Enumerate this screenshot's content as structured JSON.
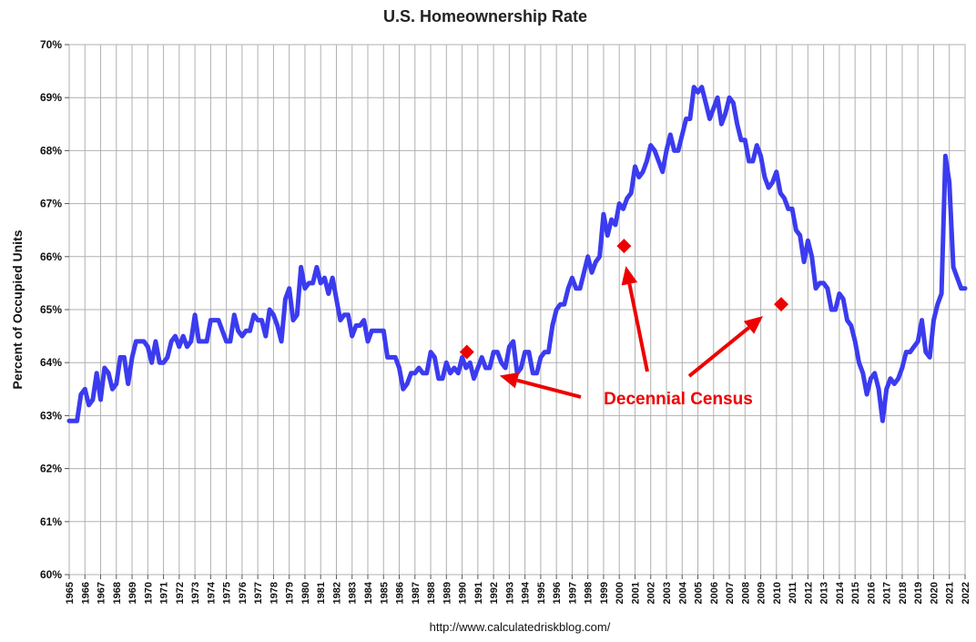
{
  "chart_data": {
    "type": "line",
    "title": "U.S. Homeownership Rate",
    "ylabel": "Percent of Occupied Units",
    "xlabel": "",
    "source": "http://www.calculatedriskblog.com/",
    "ylim": [
      60,
      70
    ],
    "xlim": [
      1965,
      2022
    ],
    "yticks": [
      "60%",
      "61%",
      "62%",
      "63%",
      "64%",
      "65%",
      "66%",
      "67%",
      "68%",
      "69%",
      "70%"
    ],
    "xticks": [
      "1965",
      "1966",
      "1967",
      "1968",
      "1969",
      "1970",
      "1971",
      "1972",
      "1973",
      "1974",
      "1975",
      "1976",
      "1977",
      "1978",
      "1979",
      "1980",
      "1981",
      "1982",
      "1983",
      "1984",
      "1985",
      "1986",
      "1987",
      "1988",
      "1989",
      "1990",
      "1991",
      "1992",
      "1993",
      "1994",
      "1995",
      "1996",
      "1997",
      "1998",
      "1999",
      "2000",
      "2001",
      "2002",
      "2003",
      "2004",
      "2005",
      "2006",
      "2007",
      "2008",
      "2009",
      "2010",
      "2011",
      "2012",
      "2013",
      "2014",
      "2015",
      "2016",
      "2017",
      "2018",
      "2019",
      "2020",
      "2021",
      "2022"
    ],
    "grid": true,
    "colors": {
      "series": "#3b3bf0",
      "census": "#ee0000",
      "grid": "#b0b0b0"
    },
    "series": [
      {
        "values": [
          [
            1965.0,
            62.9
          ],
          [
            1965.25,
            62.9
          ],
          [
            1965.5,
            62.9
          ],
          [
            1965.75,
            63.4
          ],
          [
            1966.0,
            63.5
          ],
          [
            1966.25,
            63.2
          ],
          [
            1966.5,
            63.3
          ],
          [
            1966.75,
            63.8
          ],
          [
            1967.0,
            63.3
          ],
          [
            1967.25,
            63.9
          ],
          [
            1967.5,
            63.8
          ],
          [
            1967.75,
            63.5
          ],
          [
            1968.0,
            63.6
          ],
          [
            1968.25,
            64.1
          ],
          [
            1968.5,
            64.1
          ],
          [
            1968.75,
            63.6
          ],
          [
            1969.0,
            64.1
          ],
          [
            1969.25,
            64.4
          ],
          [
            1969.5,
            64.4
          ],
          [
            1969.75,
            64.4
          ],
          [
            1970.0,
            64.3
          ],
          [
            1970.25,
            64.0
          ],
          [
            1970.5,
            64.4
          ],
          [
            1970.75,
            64.0
          ],
          [
            1971.0,
            64.0
          ],
          [
            1971.25,
            64.1
          ],
          [
            1971.5,
            64.4
          ],
          [
            1971.75,
            64.5
          ],
          [
            1972.0,
            64.3
          ],
          [
            1972.25,
            64.5
          ],
          [
            1972.5,
            64.3
          ],
          [
            1972.75,
            64.4
          ],
          [
            1973.0,
            64.9
          ],
          [
            1973.25,
            64.4
          ],
          [
            1973.5,
            64.4
          ],
          [
            1973.75,
            64.4
          ],
          [
            1974.0,
            64.8
          ],
          [
            1974.25,
            64.8
          ],
          [
            1974.5,
            64.8
          ],
          [
            1974.75,
            64.6
          ],
          [
            1975.0,
            64.4
          ],
          [
            1975.25,
            64.4
          ],
          [
            1975.5,
            64.9
          ],
          [
            1975.75,
            64.6
          ],
          [
            1976.0,
            64.5
          ],
          [
            1976.25,
            64.6
          ],
          [
            1976.5,
            64.6
          ],
          [
            1976.75,
            64.9
          ],
          [
            1977.0,
            64.8
          ],
          [
            1977.25,
            64.8
          ],
          [
            1977.5,
            64.5
          ],
          [
            1977.75,
            65.0
          ],
          [
            1978.0,
            64.9
          ],
          [
            1978.25,
            64.7
          ],
          [
            1978.5,
            64.4
          ],
          [
            1978.75,
            65.2
          ],
          [
            1979.0,
            65.4
          ],
          [
            1979.25,
            64.8
          ],
          [
            1979.5,
            64.9
          ],
          [
            1979.75,
            65.8
          ],
          [
            1980.0,
            65.4
          ],
          [
            1980.25,
            65.5
          ],
          [
            1980.5,
            65.5
          ],
          [
            1980.75,
            65.8
          ],
          [
            1981.0,
            65.5
          ],
          [
            1981.25,
            65.6
          ],
          [
            1981.5,
            65.3
          ],
          [
            1981.75,
            65.6
          ],
          [
            1982.0,
            65.2
          ],
          [
            1982.25,
            64.8
          ],
          [
            1982.5,
            64.9
          ],
          [
            1982.75,
            64.9
          ],
          [
            1983.0,
            64.5
          ],
          [
            1983.25,
            64.7
          ],
          [
            1983.5,
            64.7
          ],
          [
            1983.75,
            64.8
          ],
          [
            1984.0,
            64.4
          ],
          [
            1984.25,
            64.6
          ],
          [
            1984.5,
            64.6
          ],
          [
            1984.75,
            64.6
          ],
          [
            1985.0,
            64.6
          ],
          [
            1985.25,
            64.1
          ],
          [
            1985.5,
            64.1
          ],
          [
            1985.75,
            64.1
          ],
          [
            1986.0,
            63.9
          ],
          [
            1986.25,
            63.5
          ],
          [
            1986.5,
            63.6
          ],
          [
            1986.75,
            63.8
          ],
          [
            1987.0,
            63.8
          ],
          [
            1987.25,
            63.9
          ],
          [
            1987.5,
            63.8
          ],
          [
            1987.75,
            63.8
          ],
          [
            1988.0,
            64.2
          ],
          [
            1988.25,
            64.1
          ],
          [
            1988.5,
            63.7
          ],
          [
            1988.75,
            63.7
          ],
          [
            1989.0,
            64.0
          ],
          [
            1989.25,
            63.8
          ],
          [
            1989.5,
            63.9
          ],
          [
            1989.75,
            63.8
          ],
          [
            1990.0,
            64.1
          ],
          [
            1990.25,
            63.9
          ],
          [
            1990.5,
            64.0
          ],
          [
            1990.75,
            63.7
          ],
          [
            1991.0,
            63.9
          ],
          [
            1991.25,
            64.1
          ],
          [
            1991.5,
            63.9
          ],
          [
            1991.75,
            63.9
          ],
          [
            1992.0,
            64.2
          ],
          [
            1992.25,
            64.2
          ],
          [
            1992.5,
            64.0
          ],
          [
            1992.75,
            63.9
          ],
          [
            1993.0,
            64.3
          ],
          [
            1993.25,
            64.4
          ],
          [
            1993.5,
            63.8
          ],
          [
            1993.75,
            63.9
          ],
          [
            1994.0,
            64.2
          ],
          [
            1994.25,
            64.2
          ],
          [
            1994.5,
            63.8
          ],
          [
            1994.75,
            63.8
          ],
          [
            1995.0,
            64.1
          ],
          [
            1995.25,
            64.2
          ],
          [
            1995.5,
            64.2
          ],
          [
            1995.75,
            64.7
          ],
          [
            1996.0,
            65.0
          ],
          [
            1996.25,
            65.1
          ],
          [
            1996.5,
            65.1
          ],
          [
            1996.75,
            65.4
          ],
          [
            1997.0,
            65.6
          ],
          [
            1997.25,
            65.4
          ],
          [
            1997.5,
            65.4
          ],
          [
            1997.75,
            65.7
          ],
          [
            1998.0,
            66.0
          ],
          [
            1998.25,
            65.7
          ],
          [
            1998.5,
            65.9
          ],
          [
            1998.75,
            66.0
          ],
          [
            1999.0,
            66.8
          ],
          [
            1999.25,
            66.4
          ],
          [
            1999.5,
            66.7
          ],
          [
            1999.75,
            66.6
          ],
          [
            2000.0,
            67.0
          ],
          [
            2000.25,
            66.9
          ],
          [
            2000.5,
            67.1
          ],
          [
            2000.75,
            67.2
          ],
          [
            2001.0,
            67.7
          ],
          [
            2001.25,
            67.5
          ],
          [
            2001.5,
            67.6
          ],
          [
            2001.75,
            67.8
          ],
          [
            2002.0,
            68.1
          ],
          [
            2002.25,
            68.0
          ],
          [
            2002.5,
            67.8
          ],
          [
            2002.75,
            67.6
          ],
          [
            2003.0,
            68.0
          ],
          [
            2003.25,
            68.3
          ],
          [
            2003.5,
            68.0
          ],
          [
            2003.75,
            68.0
          ],
          [
            2004.0,
            68.3
          ],
          [
            2004.25,
            68.6
          ],
          [
            2004.5,
            68.6
          ],
          [
            2004.75,
            69.2
          ],
          [
            2005.0,
            69.1
          ],
          [
            2005.25,
            69.2
          ],
          [
            2005.5,
            68.9
          ],
          [
            2005.75,
            68.6
          ],
          [
            2006.0,
            68.8
          ],
          [
            2006.25,
            69.0
          ],
          [
            2006.5,
            68.5
          ],
          [
            2006.75,
            68.7
          ],
          [
            2007.0,
            69.0
          ],
          [
            2007.25,
            68.9
          ],
          [
            2007.5,
            68.5
          ],
          [
            2007.75,
            68.2
          ],
          [
            2008.0,
            68.2
          ],
          [
            2008.25,
            67.8
          ],
          [
            2008.5,
            67.8
          ],
          [
            2008.75,
            68.1
          ],
          [
            2009.0,
            67.9
          ],
          [
            2009.25,
            67.5
          ],
          [
            2009.5,
            67.3
          ],
          [
            2009.75,
            67.4
          ],
          [
            2010.0,
            67.6
          ],
          [
            2010.25,
            67.2
          ],
          [
            2010.5,
            67.1
          ],
          [
            2010.75,
            66.9
          ],
          [
            2011.0,
            66.9
          ],
          [
            2011.25,
            66.5
          ],
          [
            2011.5,
            66.4
          ],
          [
            2011.75,
            65.9
          ],
          [
            2012.0,
            66.3
          ],
          [
            2012.25,
            66.0
          ],
          [
            2012.5,
            65.4
          ],
          [
            2012.75,
            65.5
          ],
          [
            2013.0,
            65.5
          ],
          [
            2013.25,
            65.4
          ],
          [
            2013.5,
            65.0
          ],
          [
            2013.75,
            65.0
          ],
          [
            2014.0,
            65.3
          ],
          [
            2014.25,
            65.2
          ],
          [
            2014.5,
            64.8
          ],
          [
            2014.75,
            64.7
          ],
          [
            2015.0,
            64.4
          ],
          [
            2015.25,
            64.0
          ],
          [
            2015.5,
            63.8
          ],
          [
            2015.75,
            63.4
          ],
          [
            2016.0,
            63.7
          ],
          [
            2016.25,
            63.8
          ],
          [
            2016.5,
            63.5
          ],
          [
            2016.75,
            62.9
          ],
          [
            2017.0,
            63.5
          ],
          [
            2017.25,
            63.7
          ],
          [
            2017.5,
            63.6
          ],
          [
            2017.75,
            63.7
          ],
          [
            2018.0,
            63.9
          ],
          [
            2018.25,
            64.2
          ],
          [
            2018.5,
            64.2
          ],
          [
            2018.75,
            64.3
          ],
          [
            2019.0,
            64.4
          ],
          [
            2019.25,
            64.8
          ],
          [
            2019.5,
            64.2
          ],
          [
            2019.75,
            64.1
          ],
          [
            2020.0,
            64.8
          ],
          [
            2020.25,
            65.1
          ],
          [
            2020.5,
            65.3
          ],
          [
            2020.75,
            67.9
          ],
          [
            2021.0,
            67.4
          ],
          [
            2021.25,
            65.8
          ],
          [
            2021.5,
            65.6
          ],
          [
            2021.75,
            65.4
          ],
          [
            2022.0,
            65.4
          ]
        ]
      }
    ],
    "census_points": [
      [
        1990.3,
        64.2
      ],
      [
        2000.3,
        66.2
      ],
      [
        2010.3,
        65.1
      ]
    ],
    "annotation": {
      "text": "Decennial Census",
      "color": "#ee0000"
    }
  }
}
